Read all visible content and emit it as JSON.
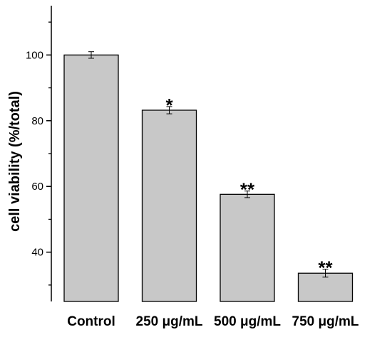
{
  "chart_data": {
    "type": "bar",
    "categories": [
      "Control",
      "250 μg/mL",
      "500 μg/mL",
      "750 μg/mL"
    ],
    "values": [
      100.0,
      83.2,
      57.6,
      33.6
    ],
    "errors": [
      1.0,
      1.1,
      1.0,
      1.2
    ],
    "annotations": [
      "",
      "*",
      "**",
      "**"
    ],
    "xlabel": "",
    "ylabel": "cell viability (%/total)",
    "ylim": [
      25,
      115
    ],
    "yticks": [
      40,
      60,
      80,
      100
    ],
    "grid": false,
    "bar_color": "#c8c8c8",
    "edge_color": "#000000"
  }
}
